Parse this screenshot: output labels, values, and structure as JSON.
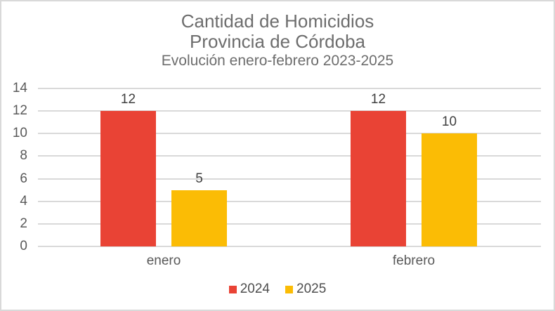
{
  "chart_data": {
    "type": "bar",
    "title": "Cantidad de Homicidios",
    "subtitle": "Provincia de Córdoba",
    "subtitle2": "Evolución enero-febrero 2023-2025",
    "categories": [
      "enero",
      "febrero"
    ],
    "series": [
      {
        "name": "2024",
        "color": "#E94335",
        "values": [
          12,
          12
        ]
      },
      {
        "name": "2025",
        "color": "#FBBC05",
        "values": [
          5,
          10
        ]
      }
    ],
    "value_labels_shown": [
      [
        "12",
        "5"
      ],
      [
        "12",
        "10"
      ]
    ],
    "ylim": [
      0,
      14
    ],
    "yticks": [
      0,
      2,
      4,
      6,
      8,
      10,
      12,
      14
    ],
    "grid": "horizontal",
    "legend_position": "bottom",
    "colors": {
      "series_2024": "#E94335",
      "series_2025": "#FBBC05",
      "gridline": "#D9D9D9",
      "frame_border": "#D9D9D9",
      "title_text": "#6D6D6D",
      "axis_text": "#595959",
      "value_text": "#404040",
      "background": "#FFFFFF"
    }
  }
}
